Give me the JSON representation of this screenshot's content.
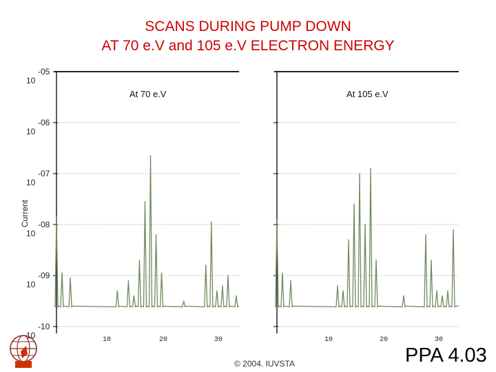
{
  "title_line1": "SCANS DURING PUMP DOWN",
  "title_line2": "AT 70 e.V and 105 e.V ELECTRON ENERGY",
  "copyright": "© 2004. IUVSTA",
  "slide_id": "PPA 4.03",
  "colors": {
    "title": "#cc0000",
    "trace": "#6f8a5e",
    "grid": "#9a9a9a",
    "axis": "#222222"
  },
  "chart_data": {
    "type": "line",
    "ylabel": "Current",
    "y_scale": "log",
    "ylim_exp": [
      -10,
      -5
    ],
    "y_ticks": [
      {
        "exp": "-05",
        "base": "10"
      },
      {
        "exp": "-06",
        "base": "10"
      },
      {
        "exp": "-07",
        "base": "10"
      },
      {
        "exp": "-08",
        "base": "10"
      },
      {
        "exp": "-09",
        "base": "10"
      },
      {
        "exp": "-10",
        "base": "10"
      }
    ],
    "x_ticks": [
      "10",
      "20",
      "30"
    ],
    "grid": true,
    "panels": [
      {
        "label": "At 70 e.V",
        "xlim": [
          1,
          34
        ],
        "baseline": -9.6,
        "peaks": [
          {
            "x": 1,
            "y": -7.85
          },
          {
            "x": 2,
            "y": -8.95
          },
          {
            "x": 3.5,
            "y": -9.05
          },
          {
            "x": 12,
            "y": -9.3
          },
          {
            "x": 14,
            "y": -9.1
          },
          {
            "x": 15,
            "y": -9.4
          },
          {
            "x": 16,
            "y": -8.7
          },
          {
            "x": 17,
            "y": -7.55
          },
          {
            "x": 18,
            "y": -6.65
          },
          {
            "x": 19,
            "y": -8.2
          },
          {
            "x": 20,
            "y": -8.95
          },
          {
            "x": 24,
            "y": -9.5
          },
          {
            "x": 28,
            "y": -8.8
          },
          {
            "x": 29,
            "y": -7.95
          },
          {
            "x": 30,
            "y": -9.3
          },
          {
            "x": 31,
            "y": -9.2
          },
          {
            "x": 32,
            "y": -9.0
          },
          {
            "x": 33.5,
            "y": -9.4
          }
        ]
      },
      {
        "label": "At 105 e.V",
        "xlim": [
          1,
          34
        ],
        "baseline": -9.6,
        "peaks": [
          {
            "x": 1,
            "y": -7.9
          },
          {
            "x": 2,
            "y": -8.95
          },
          {
            "x": 3.5,
            "y": -9.1
          },
          {
            "x": 12,
            "y": -9.2
          },
          {
            "x": 13,
            "y": -9.3
          },
          {
            "x": 14,
            "y": -8.3
          },
          {
            "x": 15,
            "y": -7.6
          },
          {
            "x": 16,
            "y": -7.0
          },
          {
            "x": 17,
            "y": -8.0
          },
          {
            "x": 18,
            "y": -6.9
          },
          {
            "x": 19,
            "y": -8.7
          },
          {
            "x": 24,
            "y": -9.4
          },
          {
            "x": 28,
            "y": -8.2
          },
          {
            "x": 29,
            "y": -8.7
          },
          {
            "x": 30,
            "y": -9.3
          },
          {
            "x": 31,
            "y": -9.4
          },
          {
            "x": 32,
            "y": -9.3
          },
          {
            "x": 33,
            "y": -8.1
          }
        ]
      }
    ]
  }
}
